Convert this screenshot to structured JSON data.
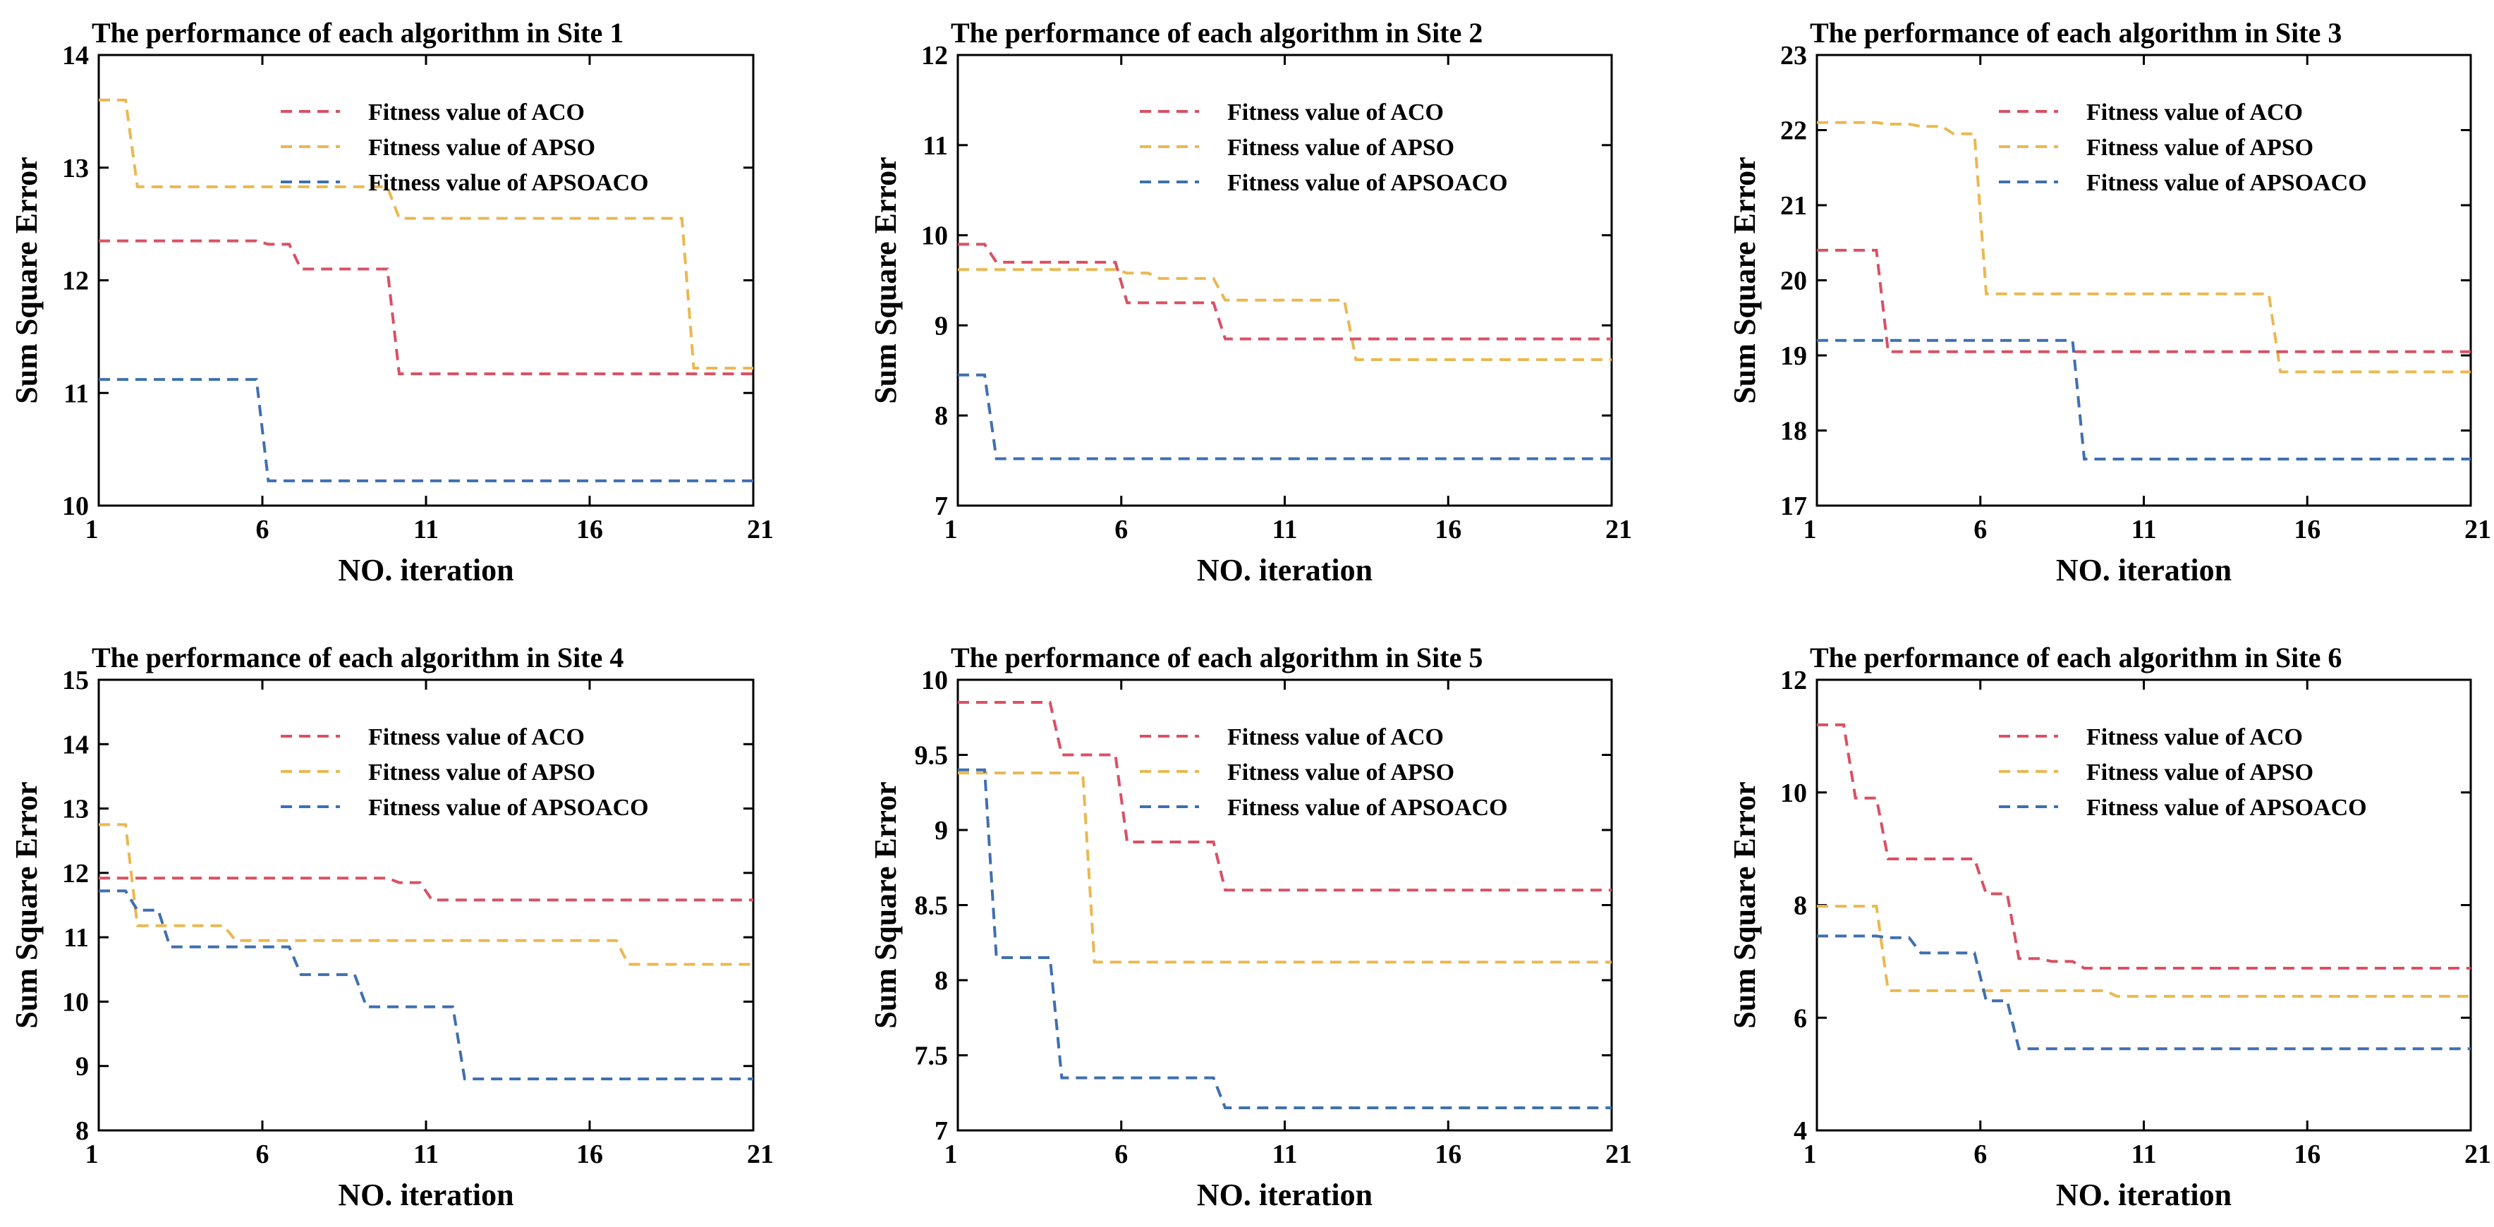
{
  "colors": {
    "aco": "#d95064",
    "apso": "#eab851",
    "apsoaco": "#3f6fb0"
  },
  "chart_data": [
    {
      "type": "line",
      "title": "The performance of each algorithm in Site 1",
      "xlabel": "NO. iteration",
      "ylabel": "Sum Square Error",
      "xlim": [
        1,
        21
      ],
      "ylim": [
        10,
        14
      ],
      "xticks": [
        1,
        6,
        11,
        16,
        21
      ],
      "yticks": [
        10,
        11,
        12,
        13,
        14
      ],
      "legend_position": "top-right",
      "x": [
        1,
        2,
        3,
        4,
        5,
        6,
        7,
        8,
        9,
        10,
        11,
        12,
        13,
        14,
        15,
        16,
        17,
        18,
        19,
        20,
        21
      ],
      "series": [
        {
          "name": "Fitness value of ACO",
          "color_key": "aco",
          "values": [
            12.35,
            12.35,
            12.35,
            12.35,
            12.35,
            12.32,
            12.1,
            12.1,
            12.1,
            11.17,
            11.17,
            11.17,
            11.17,
            11.17,
            11.17,
            11.17,
            11.17,
            11.17,
            11.17,
            11.17,
            11.17
          ]
        },
        {
          "name": "Fitness value of APSO",
          "color_key": "apso",
          "values": [
            13.6,
            12.83,
            12.83,
            12.83,
            12.83,
            12.83,
            12.83,
            12.83,
            12.83,
            12.55,
            12.55,
            12.55,
            12.55,
            12.55,
            12.55,
            12.55,
            12.55,
            12.55,
            11.22,
            11.22,
            11.22
          ]
        },
        {
          "name": "Fitness value of APSOACO",
          "color_key": "apsoaco",
          "values": [
            11.12,
            11.12,
            11.12,
            11.12,
            11.12,
            10.22,
            10.22,
            10.22,
            10.22,
            10.22,
            10.22,
            10.22,
            10.22,
            10.22,
            10.22,
            10.22,
            10.22,
            10.22,
            10.22,
            10.22,
            10.22
          ]
        }
      ]
    },
    {
      "type": "line",
      "title": "The performance of each algorithm in Site 2",
      "xlabel": "NO. iteration",
      "ylabel": "Sum Square Error",
      "xlim": [
        1,
        21
      ],
      "ylim": [
        7,
        12
      ],
      "xticks": [
        1,
        6,
        11,
        16,
        21
      ],
      "yticks": [
        7,
        8,
        9,
        10,
        11,
        12
      ],
      "legend_position": "top-right",
      "x": [
        1,
        2,
        3,
        4,
        5,
        6,
        7,
        8,
        9,
        10,
        11,
        12,
        13,
        14,
        15,
        16,
        17,
        18,
        19,
        20,
        21
      ],
      "series": [
        {
          "name": "Fitness value of ACO",
          "color_key": "aco",
          "values": [
            9.9,
            9.7,
            9.7,
            9.7,
            9.7,
            9.25,
            9.25,
            9.25,
            8.85,
            8.85,
            8.85,
            8.85,
            8.85,
            8.85,
            8.85,
            8.85,
            8.85,
            8.85,
            8.85,
            8.85,
            8.85
          ]
        },
        {
          "name": "Fitness value of APSO",
          "color_key": "apso",
          "values": [
            9.62,
            9.62,
            9.62,
            9.62,
            9.62,
            9.58,
            9.52,
            9.52,
            9.28,
            9.28,
            9.28,
            9.28,
            8.62,
            8.62,
            8.62,
            8.62,
            8.62,
            8.62,
            8.62,
            8.62,
            8.62
          ]
        },
        {
          "name": "Fitness value of APSOACO",
          "color_key": "apsoaco",
          "values": [
            8.45,
            7.52,
            7.52,
            7.52,
            7.52,
            7.52,
            7.52,
            7.52,
            7.52,
            7.52,
            7.52,
            7.52,
            7.52,
            7.52,
            7.52,
            7.52,
            7.52,
            7.52,
            7.52,
            7.52,
            7.52
          ]
        }
      ]
    },
    {
      "type": "line",
      "title": "The performance of each algorithm in Site 3",
      "xlabel": "NO. iteration",
      "ylabel": "Sum Square Error",
      "xlim": [
        1,
        21
      ],
      "ylim": [
        17,
        23
      ],
      "xticks": [
        1,
        6,
        11,
        16,
        21
      ],
      "yticks": [
        17,
        18,
        19,
        20,
        21,
        22,
        23
      ],
      "legend_position": "top-right",
      "x": [
        1,
        2,
        3,
        4,
        5,
        6,
        7,
        8,
        9,
        10,
        11,
        12,
        13,
        14,
        15,
        16,
        17,
        18,
        19,
        20,
        21
      ],
      "series": [
        {
          "name": "Fitness value of ACO",
          "color_key": "aco",
          "values": [
            20.4,
            20.4,
            19.05,
            19.05,
            19.05,
            19.05,
            19.05,
            19.05,
            19.05,
            19.05,
            19.05,
            19.05,
            19.05,
            19.05,
            19.05,
            19.05,
            19.05,
            19.05,
            19.05,
            19.05,
            19.05
          ]
        },
        {
          "name": "Fitness value of APSO",
          "color_key": "apso",
          "values": [
            22.1,
            22.1,
            22.08,
            22.05,
            21.95,
            19.82,
            19.82,
            19.82,
            19.82,
            19.82,
            19.82,
            19.82,
            19.82,
            19.82,
            18.78,
            18.78,
            18.78,
            18.78,
            18.78,
            18.78,
            18.78
          ]
        },
        {
          "name": "Fitness value of APSOACO",
          "color_key": "apsoaco",
          "values": [
            19.2,
            19.2,
            19.2,
            19.2,
            19.2,
            19.2,
            19.2,
            19.2,
            17.62,
            17.62,
            17.62,
            17.62,
            17.62,
            17.62,
            17.62,
            17.62,
            17.62,
            17.62,
            17.62,
            17.62,
            17.62
          ]
        }
      ]
    },
    {
      "type": "line",
      "title": "The performance of each algorithm in Site 4",
      "xlabel": "NO. iteration",
      "ylabel": "Sum Square Error",
      "xlim": [
        1,
        21
      ],
      "ylim": [
        8,
        15
      ],
      "xticks": [
        1,
        6,
        11,
        16,
        21
      ],
      "yticks": [
        8,
        9,
        10,
        11,
        12,
        13,
        14,
        15
      ],
      "legend_position": "top-right",
      "x": [
        1,
        2,
        3,
        4,
        5,
        6,
        7,
        8,
        9,
        10,
        11,
        12,
        13,
        14,
        15,
        16,
        17,
        18,
        19,
        20,
        21
      ],
      "series": [
        {
          "name": "Fitness value of ACO",
          "color_key": "aco",
          "values": [
            11.92,
            11.92,
            11.92,
            11.92,
            11.92,
            11.92,
            11.92,
            11.92,
            11.92,
            11.85,
            11.58,
            11.58,
            11.58,
            11.58,
            11.58,
            11.58,
            11.58,
            11.58,
            11.58,
            11.58,
            11.58
          ]
        },
        {
          "name": "Fitness value of APSO",
          "color_key": "apso",
          "values": [
            12.75,
            11.18,
            11.18,
            11.18,
            10.95,
            10.95,
            10.95,
            10.95,
            10.95,
            10.95,
            10.95,
            10.95,
            10.95,
            10.95,
            10.95,
            10.95,
            10.58,
            10.58,
            10.58,
            10.58,
            10.58
          ]
        },
        {
          "name": "Fitness value of APSOACO",
          "color_key": "apsoaco",
          "values": [
            11.72,
            11.42,
            10.85,
            10.85,
            10.85,
            10.85,
            10.42,
            10.42,
            9.92,
            9.92,
            9.92,
            8.8,
            8.8,
            8.8,
            8.8,
            8.8,
            8.8,
            8.8,
            8.8,
            8.8,
            8.8
          ]
        }
      ]
    },
    {
      "type": "line",
      "title": "The performance of each algorithm in Site 5",
      "xlabel": "NO. iteration",
      "ylabel": "Sum Square Error",
      "xlim": [
        1,
        21
      ],
      "ylim": [
        7,
        10
      ],
      "xticks": [
        1,
        6,
        11,
        16,
        21
      ],
      "yticks": [
        7,
        7.5,
        8,
        8.5,
        9,
        9.5,
        10
      ],
      "legend_position": "top-right",
      "x": [
        1,
        2,
        3,
        4,
        5,
        6,
        7,
        8,
        9,
        10,
        11,
        12,
        13,
        14,
        15,
        16,
        17,
        18,
        19,
        20,
        21
      ],
      "series": [
        {
          "name": "Fitness value of ACO",
          "color_key": "aco",
          "values": [
            9.85,
            9.85,
            9.85,
            9.5,
            9.5,
            8.92,
            8.92,
            8.92,
            8.6,
            8.6,
            8.6,
            8.6,
            8.6,
            8.6,
            8.6,
            8.6,
            8.6,
            8.6,
            8.6,
            8.6,
            8.6
          ]
        },
        {
          "name": "Fitness value of APSO",
          "color_key": "apso",
          "values": [
            9.38,
            9.38,
            9.38,
            9.38,
            8.12,
            8.12,
            8.12,
            8.12,
            8.12,
            8.12,
            8.12,
            8.12,
            8.12,
            8.12,
            8.12,
            8.12,
            8.12,
            8.12,
            8.12,
            8.12,
            8.12
          ]
        },
        {
          "name": "Fitness value of APSOACO",
          "color_key": "apsoaco",
          "values": [
            9.4,
            8.15,
            8.15,
            7.35,
            7.35,
            7.35,
            7.35,
            7.35,
            7.15,
            7.15,
            7.15,
            7.15,
            7.15,
            7.15,
            7.15,
            7.15,
            7.15,
            7.15,
            7.15,
            7.15,
            7.15
          ]
        }
      ]
    },
    {
      "type": "line",
      "title": "The performance of each algorithm in Site 6",
      "xlabel": "NO. iteration",
      "ylabel": "Sum Square Error",
      "xlim": [
        1,
        21
      ],
      "ylim": [
        4,
        12
      ],
      "xticks": [
        1,
        6,
        11,
        16,
        21
      ],
      "yticks": [
        4,
        6,
        8,
        10,
        12
      ],
      "legend_position": "top-right",
      "x": [
        1,
        2,
        3,
        4,
        5,
        6,
        7,
        8,
        9,
        10,
        11,
        12,
        13,
        14,
        15,
        16,
        17,
        18,
        19,
        20,
        21
      ],
      "series": [
        {
          "name": "Fitness value of ACO",
          "color_key": "aco",
          "values": [
            11.2,
            9.9,
            8.82,
            8.82,
            8.82,
            8.2,
            7.05,
            7.0,
            6.88,
            6.88,
            6.88,
            6.88,
            6.88,
            6.88,
            6.88,
            6.88,
            6.88,
            6.88,
            6.88,
            6.88,
            6.88
          ]
        },
        {
          "name": "Fitness value of APSO",
          "color_key": "apso",
          "values": [
            7.98,
            7.98,
            6.48,
            6.48,
            6.48,
            6.48,
            6.48,
            6.48,
            6.48,
            6.38,
            6.38,
            6.38,
            6.38,
            6.38,
            6.38,
            6.38,
            6.38,
            6.38,
            6.38,
            6.38,
            6.38
          ]
        },
        {
          "name": "Fitness value of APSOACO",
          "color_key": "apsoaco",
          "values": [
            7.45,
            7.45,
            7.42,
            7.15,
            7.15,
            6.3,
            5.45,
            5.45,
            5.45,
            5.45,
            5.45,
            5.45,
            5.45,
            5.45,
            5.45,
            5.45,
            5.45,
            5.45,
            5.45,
            5.45,
            5.45
          ]
        }
      ]
    }
  ]
}
